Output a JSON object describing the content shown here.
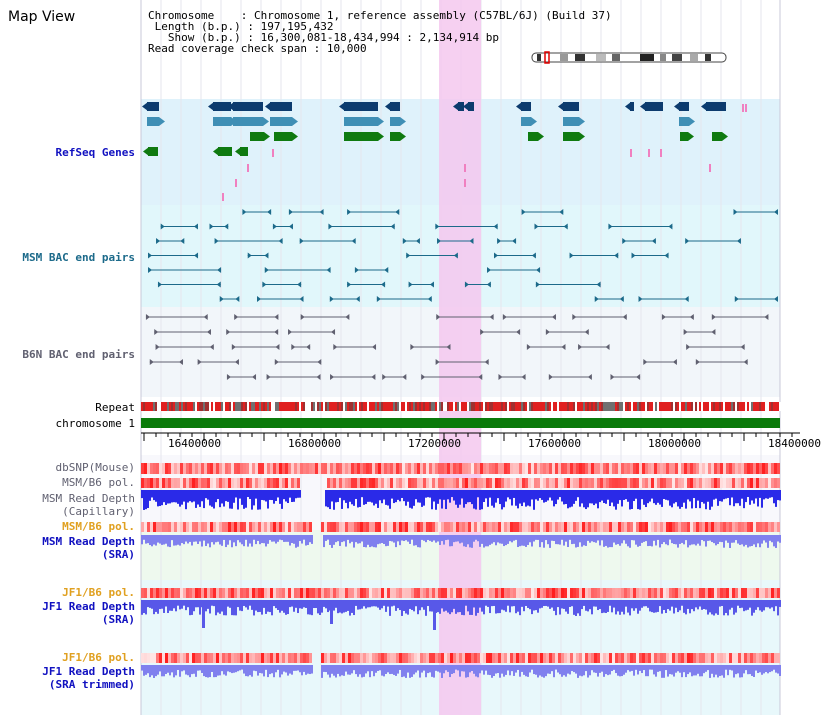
{
  "page": {
    "title": "Map View"
  },
  "info": {
    "chromosome_label": "Chromosome",
    "chromosome_value": "Chromosome 1, reference assembly (C57BL/6J) (Build 37)",
    "length_label": "Length (b.p.)",
    "length_value": "197,195,432",
    "show_label": "Show (b.p.)",
    "show_value": "16,300,081-18,434,994 : 2,134,914 bp",
    "coverage_label": "Read coverage check span",
    "coverage_value": "10,000"
  },
  "tracks": {
    "refseq": "RefSeq Genes",
    "msm_bac": "MSM BAC end pairs",
    "b6n_bac": "B6N BAC end pairs",
    "repeat": "Repeat",
    "chromosome": "chromosome 1",
    "dbsnp": "dbSNP(Mouse)",
    "msm_b6_pol_1": "MSM/B6 pol.",
    "msm_depth_cap_1": "MSM Read Depth",
    "msm_depth_cap_2": "(Capillary)",
    "msm_b6_pol_2": "MSM/B6 pol.",
    "msm_depth_sra_1": "MSM Read Depth",
    "msm_depth_sra_2": "(SRA)",
    "jf1_b6_pol_1": "JF1/B6 pol.",
    "jf1_depth_sra_1": "JF1 Read Depth",
    "jf1_depth_sra_2": "(SRA)",
    "jf1_b6_pol_2": "JF1/B6 pol.",
    "jf1_depth_trim_1": "JF1 Read Depth",
    "jf1_depth_trim_2": "(SRA trimmed)"
  },
  "axis": {
    "ticks": [
      "16400000",
      "16800000",
      "17200000",
      "17600000",
      "18000000",
      "18400000"
    ]
  },
  "colors": {
    "highlight": "#f5c8ee",
    "refseq_bg": "#dff2fb",
    "msm_bg": "#e1f7fb",
    "b6n_bg": "#f2f6fa",
    "dark_gene": "#0c3b6e",
    "mid_gene": "#3f8fb5",
    "green_gene": "#0f7a10",
    "chromosome_bar": "#0a7a0a",
    "depth_blue": "#3030e0"
  }
}
